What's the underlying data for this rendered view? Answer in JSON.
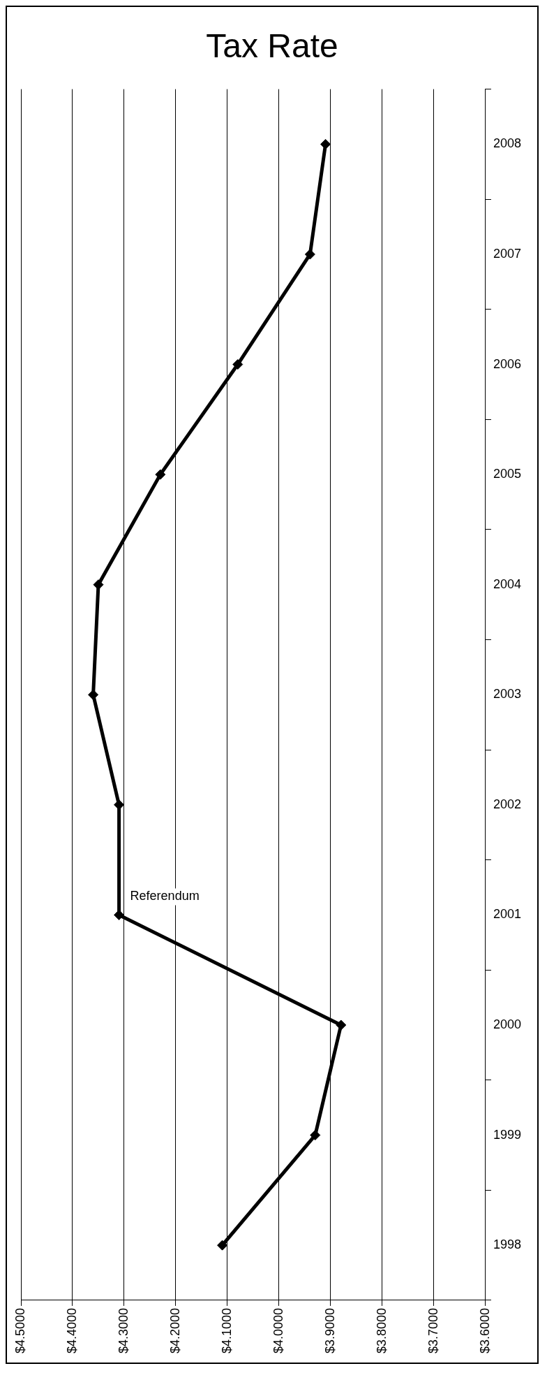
{
  "chart_data": {
    "type": "line",
    "title": "Tax Rate",
    "orientation": "horizontal",
    "categories": [
      "2008",
      "2007",
      "2006",
      "2005",
      "2004",
      "2003",
      "2002",
      "2001",
      "2000",
      "1999",
      "1998"
    ],
    "series": [
      {
        "color": "#000000",
        "values": [
          3.91,
          3.94,
          4.08,
          4.23,
          4.35,
          4.36,
          4.31,
          4.31,
          3.88,
          3.93,
          4.11
        ]
      }
    ],
    "xlim": [
      4.5,
      3.6
    ],
    "xticks": [
      {
        "value": 4.5,
        "label": "$4.5000"
      },
      {
        "value": 4.4,
        "label": "$4.4000"
      },
      {
        "value": 4.3,
        "label": "$4.3000"
      },
      {
        "value": 4.2,
        "label": "$4.2000"
      },
      {
        "value": 4.1,
        "label": "$4.1000"
      },
      {
        "value": 4.0,
        "label": "$4.0000"
      },
      {
        "value": 3.9,
        "label": "$3.9000"
      },
      {
        "value": 3.8,
        "label": "$3.8000"
      },
      {
        "value": 3.7,
        "label": "$3.7000"
      },
      {
        "value": 3.6,
        "label": "$3.6000"
      }
    ],
    "annotations": [
      {
        "text": "Referendum",
        "x": 4.31,
        "y": "2001"
      }
    ],
    "grid": "x",
    "legend": false,
    "marker": "diamond",
    "line_style": "solid"
  }
}
